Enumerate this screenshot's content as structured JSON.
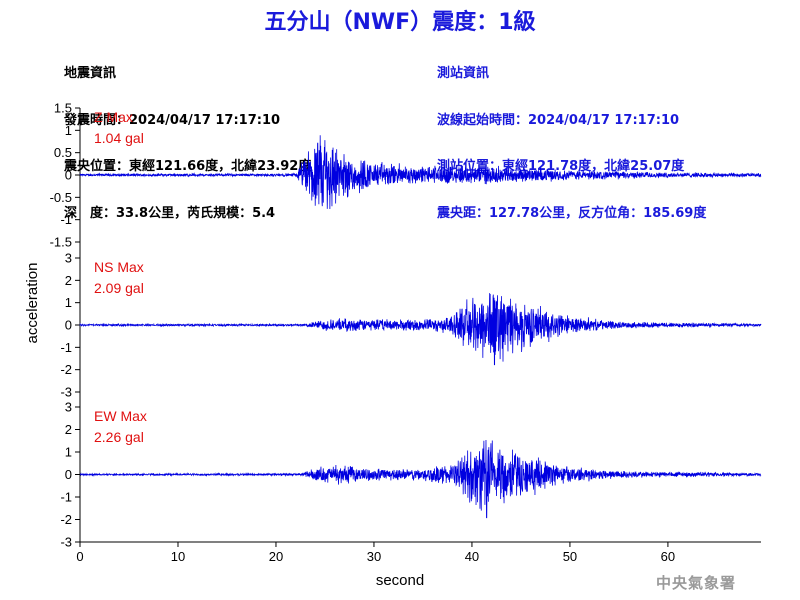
{
  "title": "五分山（NWF）震度：1級",
  "quake_info": {
    "heading": "地震資訊",
    "origin_time": "發震時間：2024/04/17 17:17:10",
    "epicenter": "震央位置：東經121.66度，北緯23.92度",
    "depth_magnitude": "深　度：33.8公里，芮氏規模：5.4"
  },
  "station_info": {
    "heading": "測站資訊",
    "wave_start": "波線起始時間：2024/04/17 17:17:10",
    "location": "測站位置：東經121.78度，北緯25.07度",
    "distance_azimuth": "震央距：127.78公里，反方位角：185.69度"
  },
  "agency": "中央氣象署",
  "colors": {
    "trace": "#0000e0",
    "max_label": "#e01010",
    "title": "#1a1adb"
  },
  "chart_data": {
    "type": "line",
    "xlabel": "second",
    "ylabel": "acceleration",
    "xlim": [
      0,
      69.5
    ],
    "xticks": [
      0,
      10,
      20,
      30,
      40,
      50,
      60
    ],
    "panels": [
      {
        "name": "Z",
        "max_label": "Z Max",
        "max_value": "1.04 gal",
        "peak": 1.04,
        "ylim": [
          -1.5,
          1.5
        ],
        "yticks": [
          -1.5,
          -1,
          -0.5,
          0,
          0.5,
          1,
          1.5
        ],
        "noise_level": 0.03,
        "envelope": [
          [
            0,
            0.03
          ],
          [
            22,
            0.03
          ],
          [
            23,
            0.45
          ],
          [
            24,
            0.8
          ],
          [
            25.5,
            0.95
          ],
          [
            27,
            0.5
          ],
          [
            30,
            0.3
          ],
          [
            35,
            0.2
          ],
          [
            40,
            0.22
          ],
          [
            43,
            0.2
          ],
          [
            50,
            0.12
          ],
          [
            60,
            0.06
          ],
          [
            69.5,
            0.04
          ]
        ],
        "peak_time": 25.0
      },
      {
        "name": "NS",
        "max_label": "NS Max",
        "max_value": "2.09 gal",
        "peak": 2.09,
        "ylim": [
          -3,
          3
        ],
        "yticks": [
          -3,
          -2,
          -1,
          0,
          1,
          2,
          3
        ],
        "noise_level": 0.04,
        "envelope": [
          [
            0,
            0.04
          ],
          [
            23,
            0.05
          ],
          [
            24.5,
            0.25
          ],
          [
            27,
            0.3
          ],
          [
            32,
            0.25
          ],
          [
            37,
            0.3
          ],
          [
            39,
            0.8
          ],
          [
            41,
            1.6
          ],
          [
            42.3,
            1.9
          ],
          [
            44,
            1.4
          ],
          [
            47,
            0.8
          ],
          [
            50,
            0.4
          ],
          [
            55,
            0.15
          ],
          [
            69.5,
            0.06
          ]
        ],
        "peak_time": 42.3
      },
      {
        "name": "EW",
        "max_label": "EW Max",
        "max_value": "2.26 gal",
        "peak": 2.26,
        "ylim": [
          -3,
          3
        ],
        "yticks": [
          -3,
          -2,
          -1,
          0,
          1,
          2,
          3
        ],
        "noise_level": 0.04,
        "envelope": [
          [
            0,
            0.04
          ],
          [
            22.5,
            0.05
          ],
          [
            24,
            0.3
          ],
          [
            26,
            0.45
          ],
          [
            29,
            0.3
          ],
          [
            34,
            0.25
          ],
          [
            38,
            0.5
          ],
          [
            40,
            1.3
          ],
          [
            41.5,
            1.9
          ],
          [
            43,
            1.5
          ],
          [
            46,
            0.8
          ],
          [
            50,
            0.35
          ],
          [
            56,
            0.15
          ],
          [
            69.5,
            0.06
          ]
        ],
        "peak_time": 41.5
      }
    ]
  }
}
